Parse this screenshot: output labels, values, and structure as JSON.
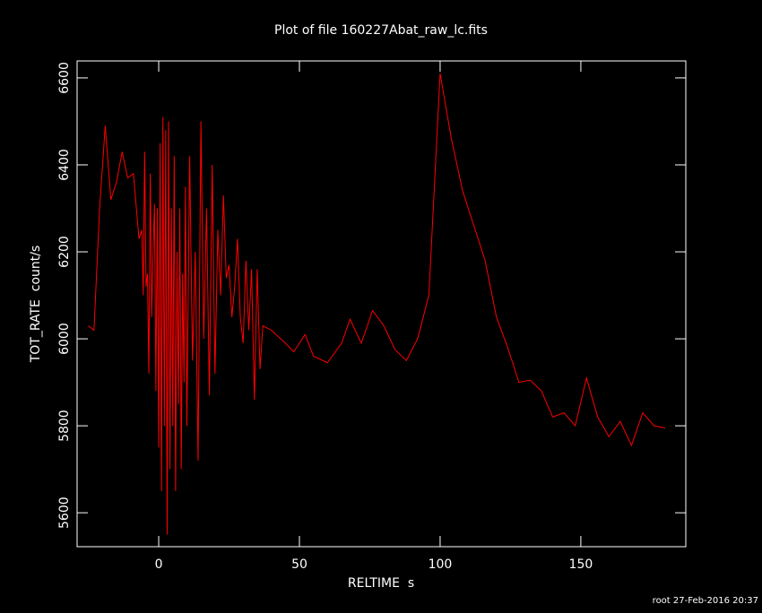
{
  "chart_data": {
    "type": "line",
    "title": "Plot of file 160227Abat_raw_lc.fits",
    "x_label": "RELTIME  s",
    "y_label": "TOT_RATE  count/s",
    "footer": "root 27-Feb-2016 20:37",
    "xlim": [
      -29,
      187.3
    ],
    "ylim": [
      5522,
      6639
    ],
    "xticks": [
      0,
      50,
      100,
      150
    ],
    "yticks": [
      5600,
      5800,
      6000,
      6200,
      6400,
      6600
    ],
    "background": "#000000",
    "axis_color": "#ffffff",
    "series": [
      {
        "color": "#ff0000",
        "x": [
          -25,
          -23,
          -21,
          -19,
          -17,
          -15,
          -13,
          -11,
          -9,
          -7,
          -6,
          -5.5,
          -5,
          -4.5,
          -4,
          -3.5,
          -3,
          -2.5,
          -2,
          -1.5,
          -1,
          -0.5,
          0,
          0.5,
          1,
          1.5,
          2,
          2.5,
          3,
          3.5,
          4,
          4.5,
          5,
          5.5,
          6,
          6.5,
          7,
          7.5,
          8,
          8.5,
          9,
          9.5,
          10,
          11,
          12,
          13,
          14,
          15,
          16,
          17,
          18,
          19,
          20,
          21,
          22,
          23,
          24,
          25,
          26,
          27,
          28,
          29,
          30,
          31,
          32,
          33,
          34,
          35,
          36,
          37,
          40,
          45,
          48,
          52,
          55,
          60,
          65,
          68,
          72,
          76,
          80,
          84,
          88,
          92,
          96,
          100,
          104,
          108,
          112,
          116,
          120,
          124,
          128,
          132,
          136,
          140,
          144,
          148,
          152,
          156,
          160,
          164,
          168,
          172,
          176,
          180
        ],
        "values": [
          6030,
          6020,
          6300,
          6490,
          6320,
          6360,
          6430,
          6370,
          6380,
          6230,
          6250,
          6100,
          6430,
          6120,
          6150,
          5920,
          6380,
          6050,
          6200,
          6310,
          5880,
          6300,
          5750,
          6450,
          5650,
          6510,
          5800,
          6480,
          5550,
          6500,
          5700,
          6300,
          5800,
          6420,
          5650,
          6200,
          5850,
          6300,
          5700,
          6150,
          5900,
          6350,
          5800,
          6420,
          5950,
          6200,
          5720,
          6500,
          6000,
          6300,
          5870,
          6400,
          5920,
          6250,
          6100,
          6330,
          6140,
          6170,
          6050,
          6120,
          6230,
          6050,
          5990,
          6180,
          6020,
          6160,
          5860,
          6160,
          5930,
          6030,
          6020,
          5990,
          5970,
          6010,
          5960,
          5945,
          5990,
          6045,
          5990,
          6065,
          6030,
          5975,
          5950,
          6000,
          6100,
          6610,
          6460,
          6340,
          6260,
          6180,
          6050,
          5980,
          5900,
          5905,
          5880,
          5820,
          5830,
          5800,
          5910,
          5820,
          5775,
          5810,
          5755,
          5830,
          5800,
          5795
        ]
      }
    ]
  }
}
